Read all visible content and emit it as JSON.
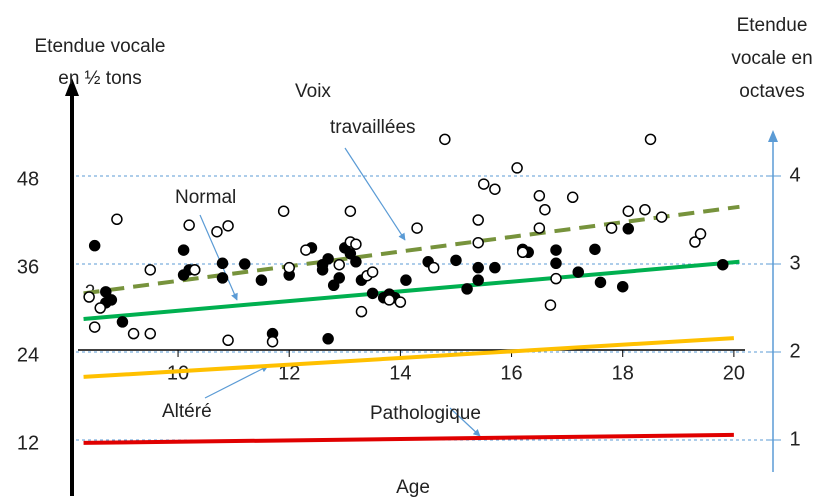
{
  "chart_data": {
    "type": "scatter",
    "y_title": [
      "Etendue vocale",
      "en ½ tons"
    ],
    "y2_title": [
      "Etendue",
      "vocale en",
      "octaves"
    ],
    "x_title": "Age",
    "annotations": [
      "2"
    ],
    "xlim": [
      8.2,
      20.2
    ],
    "xticks": [
      10,
      12,
      14,
      16,
      18,
      20
    ],
    "ylim": [
      6,
      60
    ],
    "yticks": [
      12,
      24,
      36,
      48
    ],
    "y2lim": [
      0.5,
      5
    ],
    "y2ticks": [
      1,
      2,
      3,
      4
    ],
    "grid": true,
    "series": [
      {
        "marker": "filled",
        "color": "#000000",
        "x": [
          8.5,
          8.7,
          8.7,
          8.8,
          9.0,
          10.1,
          10.1,
          10.2,
          10.3,
          10.8,
          10.8,
          11.2,
          11.5,
          11.7,
          12.0,
          12.4,
          12.6,
          12.6,
          12.7,
          12.7,
          12.8,
          12.9,
          13.0,
          13.1,
          13.2,
          13.3,
          13.5,
          13.7,
          13.8,
          13.9,
          14.1,
          14.5,
          15.0,
          15.2,
          15.4,
          15.4,
          15.7,
          16.2,
          16.3,
          16.8,
          16.8,
          17.2,
          17.5,
          17.6,
          18.0,
          18.1,
          19.8
        ],
        "values": [
          38.5,
          32.2,
          30.7,
          31.1,
          28.1,
          37.9,
          34.5,
          35.2,
          35.2,
          36.1,
          34.1,
          36.0,
          33.8,
          26.5,
          34.5,
          38.2,
          35.9,
          35.2,
          25.8,
          36.7,
          33.1,
          34.1,
          38.2,
          37.4,
          36.3,
          33.8,
          32.0,
          31.4,
          31.9,
          31.4,
          33.8,
          36.3,
          36.5,
          32.6,
          35.5,
          33.8,
          35.5,
          38.0,
          37.6,
          36.1,
          37.9,
          34.9,
          38.0,
          33.5,
          32.9,
          40.8,
          35.9
        ]
      },
      {
        "marker": "open",
        "color": "#000000",
        "x": [
          8.4,
          8.5,
          8.6,
          8.9,
          9.2,
          9.5,
          9.5,
          10.2,
          10.3,
          10.7,
          10.9,
          10.9,
          11.7,
          11.9,
          12.0,
          12.3,
          12.9,
          13.1,
          13.1,
          13.2,
          13.3,
          13.4,
          13.5,
          13.8,
          14.0,
          14.3,
          14.6,
          14.8,
          15.4,
          15.4,
          15.5,
          15.7,
          16.1,
          16.2,
          16.5,
          16.5,
          16.6,
          16.7,
          16.8,
          17.1,
          17.8,
          18.1,
          18.4,
          18.5,
          18.7,
          19.3,
          19.4
        ],
        "values": [
          31.5,
          27.4,
          30.0,
          42.1,
          26.5,
          26.5,
          35.2,
          41.3,
          35.2,
          40.4,
          41.2,
          25.6,
          25.4,
          43.2,
          35.5,
          37.9,
          35.9,
          43.2,
          39.0,
          38.7,
          29.5,
          34.4,
          34.9,
          31.1,
          30.8,
          40.9,
          35.5,
          53.0,
          42.0,
          38.9,
          46.9,
          46.2,
          49.1,
          37.6,
          40.9,
          45.3,
          43.4,
          30.4,
          34.0,
          45.1,
          40.9,
          43.2,
          43.4,
          53.0,
          42.4,
          39.0,
          40.1
        ]
      }
    ],
    "lines": [
      {
        "name": [
          "Voix",
          "travaillées"
        ],
        "color": "#77933c",
        "dashed": true,
        "x": [
          8.3,
          20.1
        ],
        "values": [
          32.0,
          43.8
        ]
      },
      {
        "name": [
          "Normal"
        ],
        "color": "#00b050",
        "dashed": false,
        "x": [
          8.3,
          20.1
        ],
        "values": [
          28.5,
          36.3
        ]
      },
      {
        "name": [
          "Altéré"
        ],
        "color": "#ffc000",
        "dashed": false,
        "x": [
          8.3,
          20.0
        ],
        "values": [
          20.6,
          25.9
        ]
      },
      {
        "name": [
          "Pathologique"
        ],
        "color": "#e00000",
        "dashed": false,
        "x": [
          8.3,
          20.0
        ],
        "values": [
          11.6,
          12.7
        ]
      }
    ]
  }
}
